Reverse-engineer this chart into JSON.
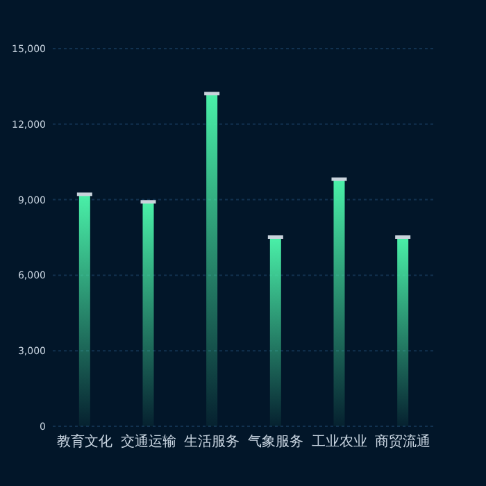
{
  "chart_data": {
    "type": "bar",
    "categories": [
      "教育文化",
      "交通运输",
      "生活服务",
      "气象服务",
      "工业农业",
      "商贸流通"
    ],
    "values": [
      9200,
      8900,
      13200,
      7500,
      9800,
      7500
    ],
    "color": "#4af0a8",
    "ylim": [
      0,
      15000
    ],
    "yticks": [
      {
        "value": 0,
        "label": "0"
      },
      {
        "value": 3000,
        "label": "3,000"
      },
      {
        "value": 6000,
        "label": "6,000"
      },
      {
        "value": 9000,
        "label": "9,000"
      },
      {
        "value": 12000,
        "label": "12,000"
      },
      {
        "value": 15000,
        "label": "15,000"
      }
    ],
    "grid": "y"
  }
}
